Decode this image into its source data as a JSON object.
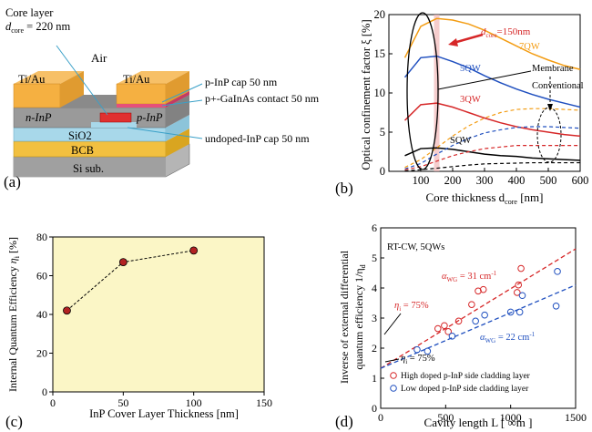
{
  "panel_a": {
    "label": "(a)",
    "core_layer_line1": "Core layer",
    "core_layer_dcore": "d",
    "core_layer_sub": "core",
    "core_layer_value": " = 220 nm",
    "air": "Air",
    "tiau_left": "Ti/Au",
    "tiau_right": "Ti/Au",
    "pinp_cap": "p-InP cap 50 nm",
    "contact": "p+-GaInAs contact 50 nm",
    "ninp": "n-InP",
    "pinp": "p-InP",
    "undoped_cap": "undoped-InP cap 50 nm",
    "sio2": "SiO2",
    "bcb": "BCB",
    "si_sub": "Si sub.",
    "colors": {
      "metal": "#f5b041",
      "pink": "#e6507a",
      "inp": "#a9a9a9",
      "sio2": "#add8e6",
      "bcb": "#f0c040",
      "si": "#b0b0b0",
      "core": "#e03030"
    }
  },
  "panel_b": {
    "label": "(b)",
    "ylabel": "Optical confinement factor ξ [%]",
    "xlabel": "Core thickness d",
    "xlabel_sub": "core",
    "xlabel_unit": " [nm]",
    "xticks": [
      "100",
      "200",
      "300",
      "400",
      "500",
      "600"
    ],
    "yticks": [
      "0",
      "5",
      "10",
      "15",
      "20"
    ],
    "dcore_label": "d",
    "dcore_sub": "core",
    "dcore_value": "=150nm",
    "membrane": "Membrane",
    "conventional": "Conventional",
    "chart_data": {
      "type": "line",
      "xlim": [
        0,
        600
      ],
      "ylim": [
        0,
        20
      ],
      "series": [
        {
          "name": "7QW",
          "color": "#f39c12",
          "style": "solid",
          "x": [
            50,
            100,
            150,
            200,
            250,
            300,
            350,
            400,
            450,
            500,
            550,
            600
          ],
          "y": [
            14.5,
            18.5,
            19.5,
            19.3,
            18.8,
            18,
            17,
            16,
            15,
            14.2,
            13.5,
            13
          ]
        },
        {
          "name": "5QW",
          "color": "#1f4fbf",
          "style": "solid",
          "x": [
            50,
            100,
            150,
            200,
            250,
            300,
            350,
            400,
            450,
            500,
            550,
            600
          ],
          "y": [
            12,
            14.5,
            14.7,
            14,
            13.2,
            12.2,
            11.3,
            10.5,
            9.8,
            9.2,
            8.7,
            8.2
          ]
        },
        {
          "name": "3QW",
          "color": "#d62728",
          "style": "solid",
          "x": [
            50,
            100,
            150,
            200,
            250,
            300,
            350,
            400,
            450,
            500,
            550,
            600
          ],
          "y": [
            6.5,
            8.5,
            8.7,
            8.2,
            7.5,
            6.8,
            6.2,
            5.7,
            5.3,
            5,
            4.7,
            4.5
          ]
        },
        {
          "name": "SQW",
          "color": "#000000",
          "style": "solid",
          "x": [
            50,
            100,
            150,
            200,
            250,
            300,
            350,
            400,
            450,
            500,
            550,
            600
          ],
          "y": [
            2,
            2.9,
            3,
            2.8,
            2.5,
            2.2,
            2,
            1.9,
            1.7,
            1.6,
            1.5,
            1.4
          ]
        },
        {
          "name": "7QW conv",
          "color": "#f39c12",
          "style": "dashed",
          "x": [
            50,
            100,
            150,
            200,
            250,
            300,
            350,
            400,
            450,
            500,
            550,
            600
          ],
          "y": [
            0.5,
            1.5,
            3,
            4.5,
            5.8,
            6.8,
            7.5,
            7.9,
            8,
            8,
            7.9,
            7.8
          ]
        },
        {
          "name": "5QW conv",
          "color": "#1f4fbf",
          "style": "dashed",
          "x": [
            50,
            100,
            150,
            200,
            250,
            300,
            350,
            400,
            450,
            500,
            550,
            600
          ],
          "y": [
            0.3,
            1,
            2.2,
            3.3,
            4.2,
            4.9,
            5.3,
            5.6,
            5.7,
            5.7,
            5.6,
            5.5
          ]
        },
        {
          "name": "3QW conv",
          "color": "#d62728",
          "style": "dashed",
          "x": [
            50,
            100,
            150,
            200,
            250,
            300,
            350,
            400,
            450,
            500,
            550,
            600
          ],
          "y": [
            0.2,
            0.6,
            1.3,
            2,
            2.5,
            2.9,
            3.1,
            3.3,
            3.3,
            3.3,
            3.3,
            3.3
          ]
        },
        {
          "name": "SQW conv",
          "color": "#000000",
          "style": "dashed",
          "x": [
            50,
            100,
            150,
            200,
            250,
            300,
            350,
            400,
            450,
            500,
            550,
            600
          ],
          "y": [
            0.05,
            0.2,
            0.4,
            0.6,
            0.8,
            0.95,
            1,
            1.05,
            1.1,
            1.1,
            1.1,
            1.1
          ]
        }
      ],
      "series_labels": [
        "7QW",
        "5QW",
        "3QW",
        "SQW"
      ],
      "highlight_x": 150
    }
  },
  "panel_c": {
    "label": "(c)",
    "ylabel": "Internal Quantum Efficiency",
    "ylabel_sym": "η",
    "ylabel_sub": "i",
    "ylabel_unit": "[%]",
    "xlabel": "InP Cover Layer Thickness [nm]",
    "xticks": [
      "0",
      "50",
      "100",
      "150"
    ],
    "yticks": [
      "0",
      "20",
      "40",
      "60",
      "80"
    ],
    "chart_data": {
      "type": "line",
      "xlim": [
        0,
        150
      ],
      "ylim": [
        0,
        80
      ],
      "x": [
        10,
        50,
        100
      ],
      "y": [
        42,
        67,
        73
      ],
      "bg_color": "#fbf6c6",
      "marker_color": "#b22222"
    }
  },
  "panel_d": {
    "label": "(d)",
    "ylabel_line1": "Inverse of external differential",
    "ylabel_line2": "quantum efficiency 1/η",
    "ylabel_sub": "d",
    "xlabel": "Cavity length L [ ∞m ]",
    "xticks": [
      "0",
      "500",
      "1000",
      "1500"
    ],
    "yticks": [
      "0",
      "1",
      "2",
      "3",
      "4",
      "5",
      "6"
    ],
    "condition": "RT-CW, 5QWs",
    "alpha_red": "α",
    "alpha_red_sub": "WG",
    "alpha_red_val": " = 31 cm",
    "alpha_red_exp": "-1",
    "alpha_blue": "α",
    "alpha_blue_sub": "WG",
    "alpha_blue_val": " = 22 cm",
    "alpha_blue_exp": "-1",
    "eta_red": "η",
    "eta_red_sub": "i",
    "eta_red_val": " = 75%",
    "eta_blue": "η",
    "eta_blue_sub": "i",
    "eta_blue_val": " = 75%",
    "legend_red": "High doped p-InP side cladding layer",
    "legend_blue": "Low doped p-InP side cladding layer",
    "chart_data": {
      "type": "scatter",
      "xlim": [
        0,
        1500
      ],
      "ylim": [
        0,
        6
      ],
      "series": [
        {
          "name": "High doped p-InP side cladding layer",
          "color": "#d62728",
          "x": [
            440,
            490,
            520,
            600,
            700,
            750,
            790,
            1050,
            1060,
            1080
          ],
          "y": [
            2.65,
            2.75,
            2.55,
            2.9,
            3.45,
            3.9,
            3.95,
            3.85,
            4.1,
            4.65
          ],
          "fit": {
            "x": [
              0,
              1500
            ],
            "y": [
              1.33,
              5.3
            ]
          }
        },
        {
          "name": "Low doped p-InP side cladding layer",
          "color": "#1f4fbf",
          "x": [
            280,
            360,
            550,
            730,
            800,
            1000,
            1070,
            1090,
            1350,
            1360
          ],
          "y": [
            1.95,
            1.9,
            2.4,
            2.9,
            3.1,
            3.2,
            3.2,
            3.75,
            3.4,
            4.55
          ],
          "fit": {
            "x": [
              0,
              1500
            ],
            "y": [
              1.33,
              4.1
            ]
          }
        }
      ]
    }
  }
}
